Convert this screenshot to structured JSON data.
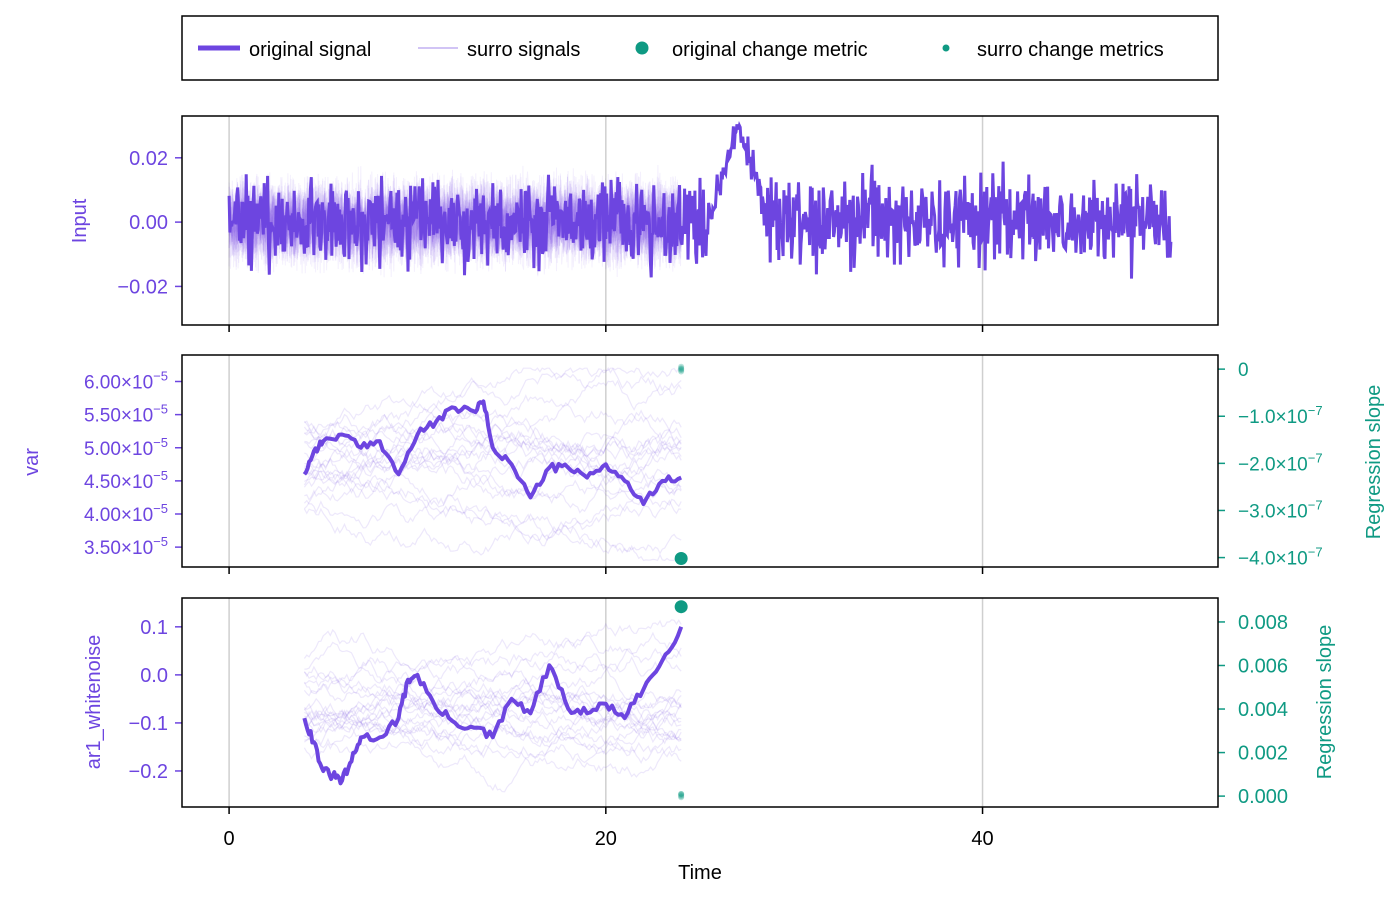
{
  "colors": {
    "primary": "#6d45e0",
    "secondary": "#0f9a83",
    "grid": "#cfcfcf",
    "frame": "#000000"
  },
  "legend": {
    "items": [
      {
        "label": "original signal",
        "kind": "thick-line"
      },
      {
        "label": "surro signals",
        "kind": "thin-line"
      },
      {
        "label": "original change metric",
        "kind": "big-dot"
      },
      {
        "label": "surro change metrics",
        "kind": "small-dot"
      }
    ]
  },
  "xaxis": {
    "label": "Time",
    "range": [
      -2.5,
      52.5
    ],
    "ticks": [
      0,
      20,
      40
    ],
    "tick_labels": [
      "0",
      "20",
      "40"
    ],
    "grid": true
  },
  "chart_data": [
    {
      "type": "line",
      "panel": "input",
      "ylabel": "Input",
      "ylim": [
        -0.032,
        0.033
      ],
      "yticks": [
        -0.02,
        0.0,
        0.02
      ],
      "ytick_labels": [
        "−0.02",
        "0.00",
        "0.02"
      ],
      "x_range": [
        0,
        50
      ],
      "original_series": {
        "name": "original signal",
        "description_points": [
          {
            "x": 0,
            "y": 0.0
          },
          {
            "x": 25.5,
            "y": 0.0
          },
          {
            "x": 27,
            "y": 0.03
          },
          {
            "x": 28,
            "y": 0.015
          },
          {
            "x": 28.5,
            "y": 0.0
          },
          {
            "x": 50,
            "y": 0.0
          }
        ],
        "noise_amplitude": 0.01,
        "extremes": {
          "max": 0.03,
          "min": -0.026
        }
      },
      "surrogates_x_range": [
        0,
        24
      ],
      "surrogate_count": 20
    },
    {
      "type": "line",
      "panel": "var",
      "ylabel": "var",
      "ylim": [
        3.2e-05,
        6.4e-05
      ],
      "yticks": [
        3.5e-05,
        4e-05,
        4.5e-05,
        5e-05,
        5.5e-05,
        6e-05
      ],
      "ytick_labels_mantissa": [
        "3.50",
        "4.00",
        "4.50",
        "5.00",
        "5.50",
        "6.00"
      ],
      "ytick_exponent": "−5",
      "original_series": {
        "name": "original signal",
        "x": [
          4,
          4.5,
          5,
          6,
          7,
          8,
          9,
          10,
          11,
          12,
          13,
          13.5,
          14,
          15,
          16,
          17,
          18,
          19,
          20,
          21,
          22,
          23,
          24
        ],
        "y": [
          4.6e-05,
          4.95e-05,
          5.1e-05,
          5.2e-05,
          5e-05,
          5.1e-05,
          4.6e-05,
          5.2e-05,
          5.4e-05,
          5.6e-05,
          5.55e-05,
          5.7e-05,
          5e-05,
          4.75e-05,
          4.25e-05,
          4.7e-05,
          4.7e-05,
          4.55e-05,
          4.75e-05,
          4.5e-05,
          4.15e-05,
          4.5e-05,
          4.55e-05
        ]
      },
      "surrogates_x_range": [
        4,
        24
      ],
      "surrogate_count": 20,
      "surrogate_y_range": [
        3.3e-05,
        6.2e-05
      ],
      "secondary_axis": {
        "ylabel": "Regression slope",
        "ylim": [
          -4.2e-07,
          3e-08
        ],
        "yticks": [
          0.0,
          -1e-07,
          -2e-07,
          -3e-07,
          -4e-07
        ],
        "ytick_labels_mantissa": [
          "0",
          "−1.0",
          "−2.0",
          "−3.0",
          "−4.0"
        ],
        "ytick_exponent": "−7"
      },
      "change_metric": {
        "x": 24,
        "original": -4.02e-07,
        "surrogates": [
          -5e-09,
          5e-09,
          2e-09,
          -2e-09,
          0.0
        ]
      }
    },
    {
      "type": "line",
      "panel": "ar1_whitenoise",
      "ylabel": "ar1_whitenoise",
      "ylim": [
        -0.275,
        0.16
      ],
      "yticks": [
        -0.2,
        -0.1,
        0.0,
        0.1
      ],
      "ytick_labels": [
        "−0.2",
        "−0.1",
        "0.0",
        "0.1"
      ],
      "original_series": {
        "name": "original signal",
        "x": [
          4,
          4.5,
          5,
          5.5,
          6,
          6.5,
          7,
          8,
          9,
          9.5,
          10,
          11,
          12,
          13,
          14,
          15,
          16,
          17,
          18,
          19,
          20,
          21,
          22,
          23,
          24
        ],
        "y": [
          -0.09,
          -0.14,
          -0.2,
          -0.21,
          -0.22,
          -0.18,
          -0.13,
          -0.13,
          -0.09,
          -0.01,
          0.0,
          -0.07,
          -0.1,
          -0.11,
          -0.13,
          -0.05,
          -0.08,
          0.02,
          -0.07,
          -0.08,
          -0.06,
          -0.09,
          -0.03,
          0.03,
          0.1
        ]
      },
      "surrogates_x_range": [
        4,
        24
      ],
      "surrogate_count": 20,
      "surrogate_y_range": [
        -0.25,
        0.14
      ],
      "secondary_axis": {
        "ylabel": "Regression slope",
        "ylim": [
          -0.0005,
          0.0091
        ],
        "yticks": [
          0.0,
          0.002,
          0.004,
          0.006,
          0.008
        ],
        "ytick_labels": [
          "0.000",
          "0.002",
          "0.004",
          "0.006",
          "0.008"
        ]
      },
      "change_metric": {
        "x": 24,
        "original": 0.0087,
        "surrogates": [
          0.0001,
          0.0,
          -5e-05,
          5e-05,
          0.0001
        ]
      }
    }
  ]
}
